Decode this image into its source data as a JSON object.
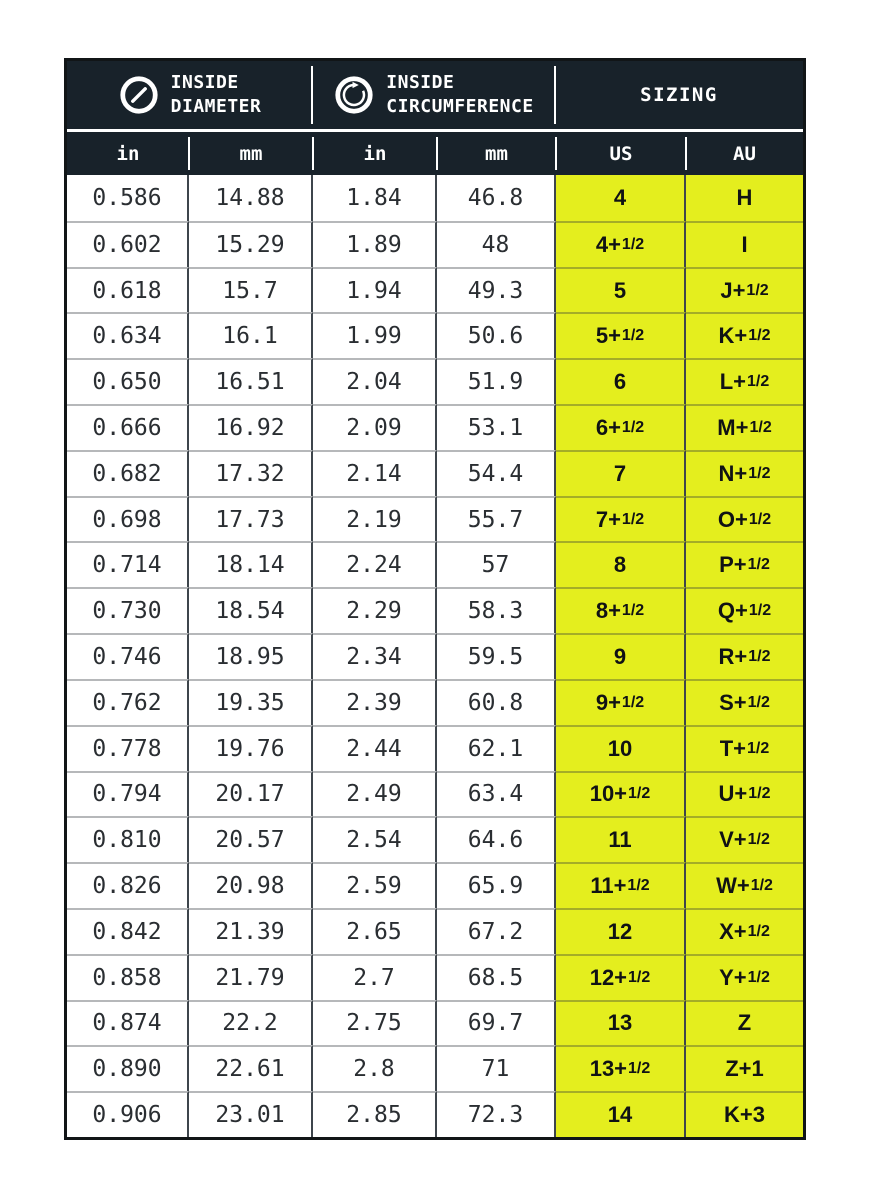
{
  "chart_data": {
    "type": "table",
    "header_groups": [
      {
        "icon": "diameter-icon",
        "lines": [
          "INSIDE",
          "DIAMETER"
        ]
      },
      {
        "icon": "circumference-icon",
        "lines": [
          "INSIDE",
          "CIRCUMFERENCE"
        ]
      },
      {
        "lines": [
          "SIZING"
        ]
      }
    ],
    "columns": [
      "in",
      "mm",
      "in",
      "mm",
      "US",
      "AU"
    ],
    "rows": [
      [
        "0.586",
        "14.88",
        "1.84",
        "46.8",
        "4",
        "H"
      ],
      [
        "0.602",
        "15.29",
        "1.89",
        "48",
        "4+1/2",
        "I"
      ],
      [
        "0.618",
        "15.7",
        "1.94",
        "49.3",
        "5",
        "J+1/2"
      ],
      [
        "0.634",
        "16.1",
        "1.99",
        "50.6",
        "5+1/2",
        "K+1/2"
      ],
      [
        "0.650",
        "16.51",
        "2.04",
        "51.9",
        "6",
        "L+1/2"
      ],
      [
        "0.666",
        "16.92",
        "2.09",
        "53.1",
        "6+1/2",
        "M+1/2"
      ],
      [
        "0.682",
        "17.32",
        "2.14",
        "54.4",
        "7",
        "N+1/2"
      ],
      [
        "0.698",
        "17.73",
        "2.19",
        "55.7",
        "7+1/2",
        "O+1/2"
      ],
      [
        "0.714",
        "18.14",
        "2.24",
        "57",
        "8",
        "P+1/2"
      ],
      [
        "0.730",
        "18.54",
        "2.29",
        "58.3",
        "8+1/2",
        "Q+1/2"
      ],
      [
        "0.746",
        "18.95",
        "2.34",
        "59.5",
        "9",
        "R+1/2"
      ],
      [
        "0.762",
        "19.35",
        "2.39",
        "60.8",
        "9+1/2",
        "S+1/2"
      ],
      [
        "0.778",
        "19.76",
        "2.44",
        "62.1",
        "10",
        "T+1/2"
      ],
      [
        "0.794",
        "20.17",
        "2.49",
        "63.4",
        "10+1/2",
        "U+1/2"
      ],
      [
        "0.810",
        "20.57",
        "2.54",
        "64.6",
        "11",
        "V+1/2"
      ],
      [
        "0.826",
        "20.98",
        "2.59",
        "65.9",
        "11+1/2",
        "W+1/2"
      ],
      [
        "0.842",
        "21.39",
        "2.65",
        "67.2",
        "12",
        "X+1/2"
      ],
      [
        "0.858",
        "21.79",
        "2.7",
        "68.5",
        "12+1/2",
        "Y+1/2"
      ],
      [
        "0.874",
        "22.2",
        "2.75",
        "69.7",
        "13",
        "Z"
      ],
      [
        "0.890",
        "22.61",
        "2.8",
        "71",
        "13+1/2",
        "Z+1"
      ],
      [
        "0.906",
        "23.01",
        "2.85",
        "72.3",
        "14",
        "K+3"
      ]
    ]
  },
  "colors": {
    "header_bg": "#18222a",
    "highlight": "#e4ee1e",
    "outer_border": "#111517",
    "body_text": "#2a2e32"
  }
}
